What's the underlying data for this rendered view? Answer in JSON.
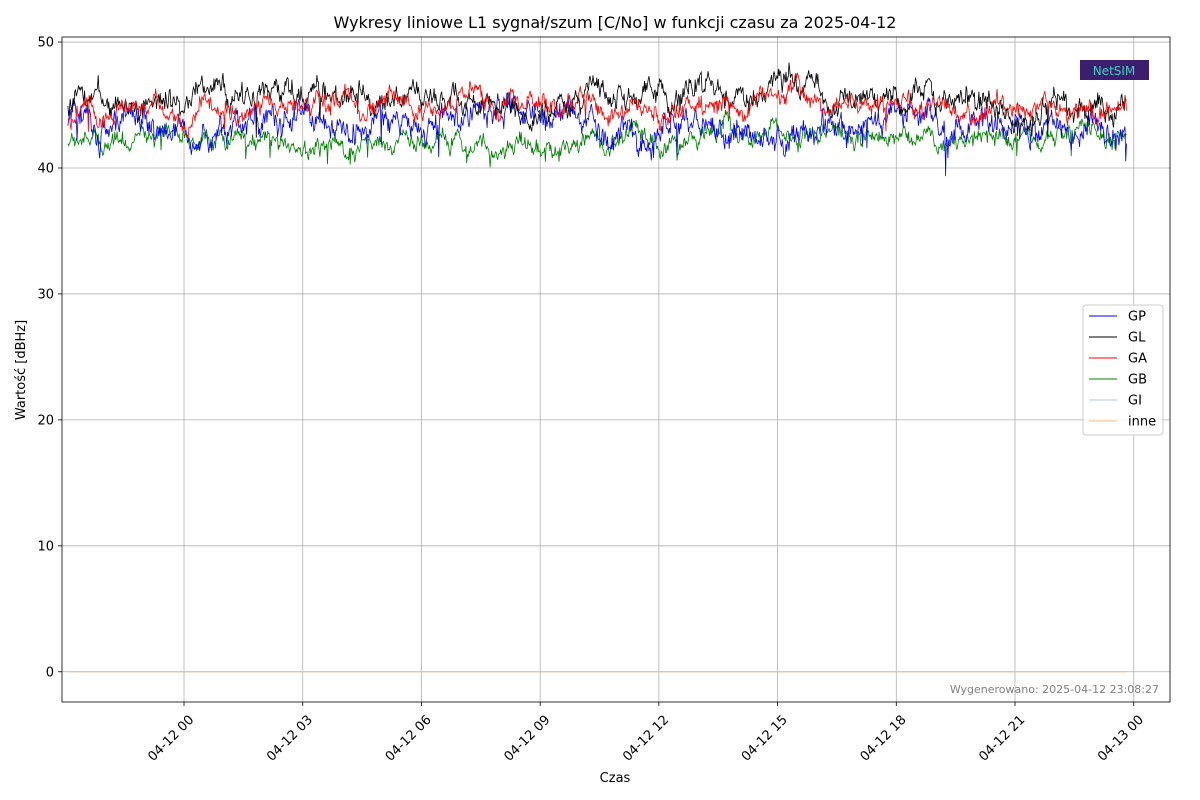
{
  "chart_data": {
    "type": "line",
    "title": "Wykresy liniowe L1 sygnał/szum [C/No] w funkcji czasu za 2025-04-12",
    "xlabel": "Czas",
    "ylabel": "Wartość [dBHz]",
    "x_range": [
      "2025-04-11 21:04",
      "2025-04-12 23:49"
    ],
    "xlim": [
      "2025-04-11 20:55",
      "2025-04-13 00:55"
    ],
    "ylim": [
      -2.4,
      50.4
    ],
    "grid": true,
    "legend_position": "center-right",
    "x_ticks": [
      "04-12 00",
      "04-12 03",
      "04-12 06",
      "04-12 09",
      "04-12 12",
      "04-12 15",
      "04-12 18",
      "04-12 21",
      "04-13 00"
    ],
    "y_ticks": [
      0,
      10,
      20,
      30,
      40,
      50
    ],
    "series": [
      {
        "name": "GP",
        "color": "#0000ff",
        "times": [
          "2025-04-11 21:04",
          "2025-04-12 00:00",
          "2025-04-12 03:00",
          "2025-04-12 06:00",
          "2025-04-12 09:00",
          "2025-04-12 12:00",
          "2025-04-12 15:00",
          "2025-04-12 18:00",
          "2025-04-12 21:00",
          "2025-04-12 23:49"
        ],
        "values": [
          43.5,
          43.0,
          44.0,
          43.0,
          44.5,
          43.0,
          42.5,
          44.0,
          43.5,
          43.0
        ]
      },
      {
        "name": "GL",
        "color": "#000000",
        "times": [
          "2025-04-11 21:04",
          "2025-04-12 00:00",
          "2025-04-12 03:00",
          "2025-04-12 06:00",
          "2025-04-12 09:00",
          "2025-04-12 12:00",
          "2025-04-12 15:00",
          "2025-04-12 18:00",
          "2025-04-12 21:00",
          "2025-04-12 23:49"
        ],
        "values": [
          45.0,
          46.5,
          45.5,
          45.5,
          45.0,
          46.0,
          46.5,
          45.5,
          44.5,
          45.0
        ]
      },
      {
        "name": "GA",
        "color": "#ff0000",
        "times": [
          "2025-04-11 21:04",
          "2025-04-12 00:00",
          "2025-04-12 03:00",
          "2025-04-12 06:00",
          "2025-04-12 09:00",
          "2025-04-12 12:00",
          "2025-04-12 15:00",
          "2025-04-12 18:00",
          "2025-04-12 21:00",
          "2025-04-12 23:49"
        ],
        "values": [
          44.0,
          44.5,
          45.5,
          45.0,
          45.5,
          44.0,
          45.5,
          45.0,
          44.5,
          44.5
        ]
      },
      {
        "name": "GB",
        "color": "#008000",
        "times": [
          "2025-04-11 21:04",
          "2025-04-12 00:00",
          "2025-04-12 03:00",
          "2025-04-12 06:00",
          "2025-04-12 09:00",
          "2025-04-12 12:00",
          "2025-04-12 15:00",
          "2025-04-12 18:00",
          "2025-04-12 21:00",
          "2025-04-12 23:49"
        ],
        "values": [
          42.0,
          42.5,
          41.5,
          42.5,
          41.5,
          42.5,
          43.0,
          42.0,
          42.5,
          42.5
        ]
      },
      {
        "name": "GI",
        "color": "#aec7e8",
        "times": [
          "2025-04-11 21:04",
          "2025-04-12 23:49"
        ],
        "values": [
          0,
          0
        ]
      },
      {
        "name": "inne",
        "color": "#ffbb78",
        "times": [
          "2025-04-11 21:04",
          "2025-04-12 23:49"
        ],
        "values": [
          0,
          0
        ]
      }
    ],
    "footer": "Wygenerowano: 2025-04-12 23:08:27",
    "logo_text": "NetSIM"
  }
}
